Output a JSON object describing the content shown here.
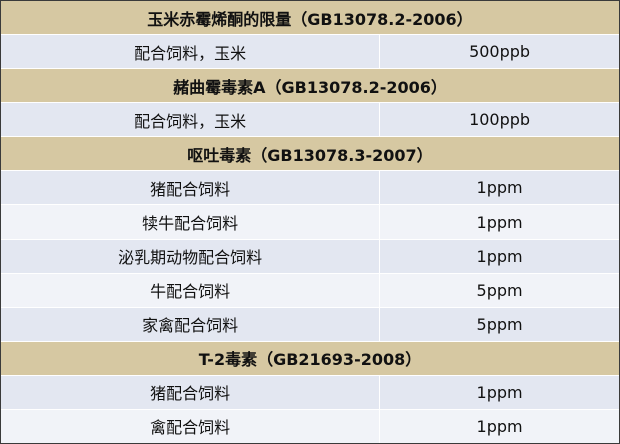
{
  "sections": [
    {
      "title": "玉米赤霉烯酮的限量（GB13078.2-2006）",
      "rows": [
        [
          "配合饲料，玉米",
          "500ppb"
        ]
      ]
    },
    {
      "title": "赭曲霉毒素A（GB13078.2-2006）",
      "rows": [
        [
          "配合饲料，玉米",
          "100ppb"
        ]
      ]
    },
    {
      "title": "呕吐毒素（GB13078.3-2007）",
      "rows": [
        [
          "猪配合饲料",
          "1ppm"
        ],
        [
          "犊牛配合饲料",
          "1ppm"
        ],
        [
          "泌乳期动物配合饲料",
          "1ppm"
        ],
        [
          "牛配合饲料",
          "5ppm"
        ],
        [
          "家禽配合饲料",
          "5ppm"
        ]
      ]
    },
    {
      "title": "T-2毒素（GB21693-2008）",
      "rows": [
        [
          "猪配合饲料",
          "1ppm"
        ],
        [
          "禽配合饲料",
          "1ppm"
        ]
      ]
    }
  ]
}
